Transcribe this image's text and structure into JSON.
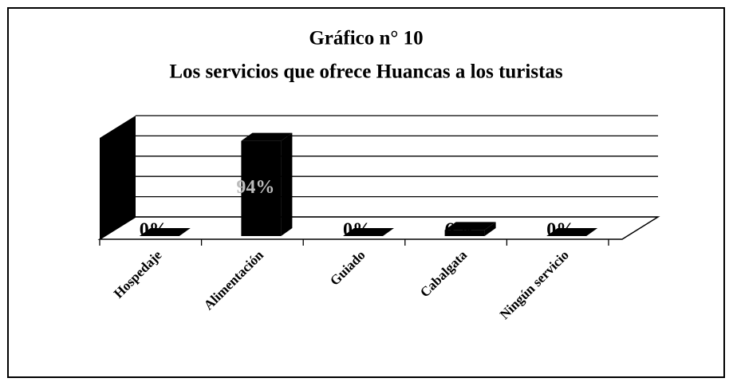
{
  "chart_data": {
    "type": "bar3d",
    "title": "Gráfico  n° 10",
    "subtitle": "Los servicios que ofrece Huancas a los turistas",
    "categories": [
      "Hospedaje",
      "Alimentación",
      "Guiado",
      "Cabalgata",
      "Ningún servicio"
    ],
    "values": [
      0,
      94,
      0,
      6,
      0
    ],
    "value_labels": [
      "0%",
      "94%",
      "0%",
      "6%",
      "0%"
    ],
    "color": "#000000",
    "ylim": [
      0,
      100
    ],
    "yticks": [
      0,
      20,
      40,
      60,
      80,
      100
    ],
    "grid": true
  }
}
